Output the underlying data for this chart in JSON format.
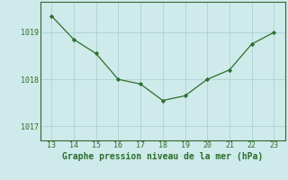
{
  "x": [
    13,
    14,
    15,
    16,
    17,
    18,
    19,
    20,
    21,
    22,
    23
  ],
  "y": [
    1019.35,
    1018.85,
    1018.55,
    1018.0,
    1017.9,
    1017.55,
    1017.65,
    1018.0,
    1018.2,
    1018.75,
    1019.0
  ],
  "line_color": "#2d6e2d",
  "marker_color": "#2d6e2d",
  "background_color": "#ceeaea",
  "grid_color": "#aacccc",
  "xlabel": "Graphe pression niveau de la mer (hPa)",
  "xlabel_color": "#2d6e2d",
  "tick_color": "#2d6e2d",
  "spine_color": "#336633",
  "xlim": [
    12.5,
    23.5
  ],
  "ylim": [
    1016.7,
    1019.65
  ],
  "yticks": [
    1017,
    1018,
    1019
  ],
  "xticks": [
    13,
    14,
    15,
    16,
    17,
    18,
    19,
    20,
    21,
    22,
    23
  ],
  "tick_fontsize": 6.0,
  "xlabel_fontsize": 7.0
}
